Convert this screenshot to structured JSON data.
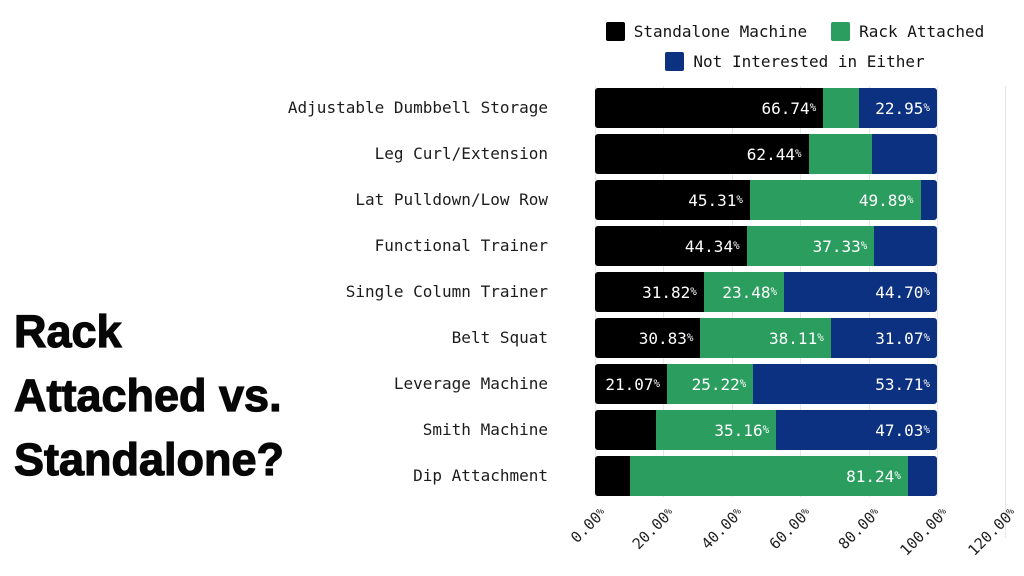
{
  "title": {
    "full": "Rack Attached vs. Standalone?",
    "lines": [
      "Rack",
      "Attached vs.",
      "Standalone?"
    ]
  },
  "colors": {
    "standalone": "#000000",
    "rack_attached": "#2a9d5f",
    "not_interested": "#0c3180",
    "gridline": "#e7e7e7",
    "bar_label_text": "#ffffff",
    "background": "#ffffff"
  },
  "chart_data": {
    "type": "bar",
    "orientation": "horizontal",
    "stacked": true,
    "title": "Rack Attached vs. Standalone?",
    "xlabel": "",
    "ylabel": "",
    "xlim": [
      0,
      120
    ],
    "grid": "vertical",
    "legend_position": "top-center",
    "x_ticks": [
      "0.00%",
      "20.00%",
      "40.00%",
      "60.00%",
      "80.00%",
      "100.00%",
      "120.00%"
    ],
    "x_tick_values": [
      0,
      20,
      40,
      60,
      80,
      100,
      120
    ],
    "categories": [
      "Adjustable Dumbbell Storage",
      "Leg Curl/Extension",
      "Lat Pulldown/Low Row",
      "Functional Trainer",
      "Single Column Trainer",
      "Belt Squat",
      "Leverage Machine",
      "Smith Machine",
      "Dip Attachment"
    ],
    "series": [
      {
        "name": "Standalone Machine",
        "color": "#000000",
        "values": [
          66.74,
          62.44,
          45.31,
          44.34,
          31.82,
          30.83,
          21.07,
          17.81,
          10.25
        ],
        "labels": [
          "66.74%",
          "62.44%",
          "45.31%",
          "44.34%",
          "31.82%",
          "30.83%",
          "21.07%",
          "",
          ""
        ]
      },
      {
        "name": "Rack Attached",
        "color": "#2a9d5f",
        "values": [
          10.31,
          18.53,
          49.89,
          37.33,
          23.48,
          38.11,
          25.22,
          35.16,
          81.24
        ],
        "labels": [
          "",
          "",
          "49.89%",
          "37.33%",
          "23.48%",
          "38.11%",
          "25.22%",
          "35.16%",
          "81.24%"
        ]
      },
      {
        "name": "Not Interested in Either",
        "color": "#0c3180",
        "values": [
          22.95,
          19.03,
          4.8,
          18.33,
          44.7,
          31.07,
          53.71,
          47.03,
          8.51
        ],
        "labels": [
          "22.95%",
          "",
          "",
          "",
          "44.70%",
          "31.07%",
          "53.71%",
          "47.03%",
          ""
        ]
      }
    ],
    "note": "unlabeled segment values estimated from bar pixel widths; each row sums to 100%"
  },
  "legend_layout": {
    "rows": [
      [
        0,
        1
      ],
      [
        2
      ]
    ]
  }
}
